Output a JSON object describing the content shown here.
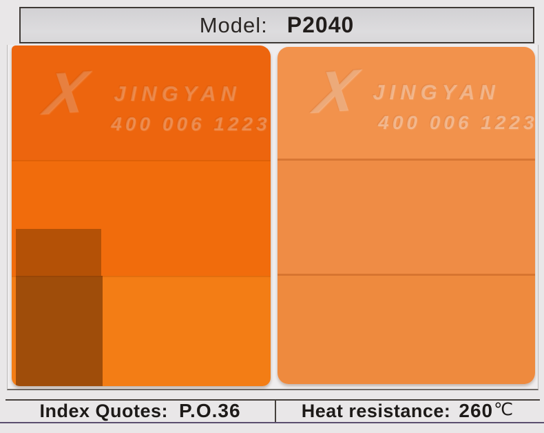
{
  "header": {
    "model_label": "Model:",
    "model_value": "P2040"
  },
  "chips": {
    "left": {
      "description": "full-tone orange sample chip",
      "brand_text": "JINGYAN",
      "phone_text": "400 006 1223",
      "logo_glyph": "X",
      "band_colors": [
        "#ed650e",
        "#f16c0c",
        "#f37d15"
      ],
      "shadow_upper_color": "rgba(95,45,0,0.42)",
      "shadow_lower_color": "rgba(75,30,0,0.50)"
    },
    "right": {
      "description": "tint orange sample chip",
      "brand_text": "JINGYAN",
      "phone_text": "400 006 1223",
      "logo_glyph": "X",
      "band_colors": [
        "#f2924c",
        "#ef8c45",
        "#ee8a3e"
      ]
    }
  },
  "footer": {
    "index_label": "Index Quotes:",
    "index_value": "P.O.36",
    "heat_label": "Heat resistance:",
    "heat_value": "260",
    "heat_unit": "℃"
  },
  "colors": {
    "page_background": "#e9e7e8",
    "header_background": "#d8d7d9",
    "panel_background": "#efedee",
    "border_dark": "#3e3935",
    "footer_bottom_line": "#5a4e6e",
    "text": "#1d1a18"
  }
}
